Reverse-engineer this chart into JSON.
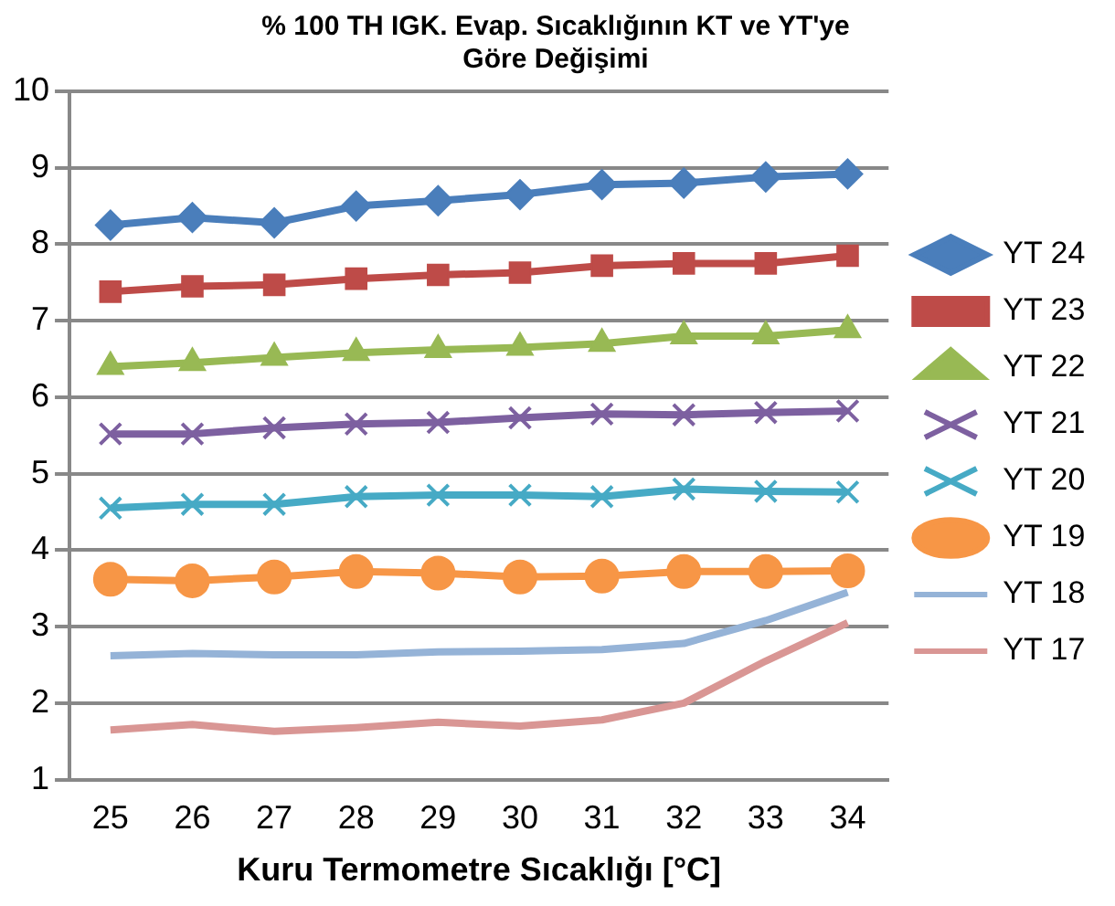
{
  "chart_data": {
    "type": "line",
    "title": "% 100 TH IGK. Evap. Sıcaklığının KT ve YT'ye Göre Değişimi",
    "xlabel": "Kuru Termometre Sıcaklığı [°C]",
    "categories": [
      "25",
      "26",
      "27",
      "28",
      "29",
      "30",
      "31",
      "32",
      "33",
      "34"
    ],
    "ylim": [
      1,
      10
    ],
    "yticks": [
      1,
      2,
      3,
      4,
      5,
      6,
      7,
      8,
      9,
      10
    ],
    "grid": "y",
    "legend": "right",
    "series": [
      {
        "name": "YT 24",
        "color": "#4a7ebb",
        "marker": "diamond",
        "values": [
          8.25,
          8.35,
          8.28,
          8.5,
          8.57,
          8.65,
          8.78,
          8.8,
          8.88,
          8.92
        ]
      },
      {
        "name": "YT 23",
        "color": "#be4b48",
        "marker": "square",
        "values": [
          7.38,
          7.45,
          7.47,
          7.55,
          7.6,
          7.63,
          7.72,
          7.75,
          7.75,
          7.85
        ]
      },
      {
        "name": "YT 22",
        "color": "#98b954",
        "marker": "triangle",
        "values": [
          6.4,
          6.45,
          6.52,
          6.58,
          6.62,
          6.65,
          6.7,
          6.8,
          6.8,
          6.88
        ]
      },
      {
        "name": "YT 21",
        "color": "#7d60a0",
        "marker": "cross",
        "values": [
          5.52,
          5.52,
          5.6,
          5.65,
          5.67,
          5.73,
          5.78,
          5.77,
          5.8,
          5.82
        ]
      },
      {
        "name": "YT 20",
        "color": "#46aac5",
        "marker": "cross",
        "values": [
          4.55,
          4.6,
          4.6,
          4.7,
          4.72,
          4.72,
          4.7,
          4.8,
          4.77,
          4.76
        ]
      },
      {
        "name": "YT 19",
        "color": "#f79646",
        "marker": "circle",
        "values": [
          3.62,
          3.6,
          3.65,
          3.72,
          3.7,
          3.65,
          3.66,
          3.72,
          3.72,
          3.73
        ]
      },
      {
        "name": "YT 18",
        "color": "#95b3d7",
        "marker": "none",
        "values": [
          2.62,
          2.65,
          2.63,
          2.63,
          2.67,
          2.68,
          2.7,
          2.78,
          3.08,
          3.45
        ]
      },
      {
        "name": "YT 17",
        "color": "#d99694",
        "marker": "none",
        "values": [
          1.65,
          1.72,
          1.63,
          1.68,
          1.75,
          1.7,
          1.78,
          2.0,
          2.55,
          3.05
        ]
      }
    ]
  }
}
